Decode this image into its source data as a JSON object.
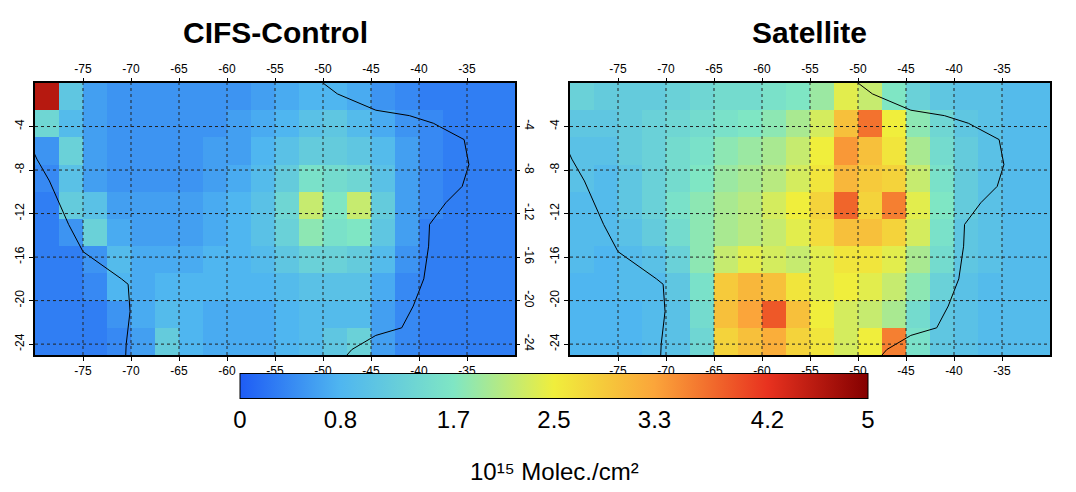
{
  "chart_data": {
    "type": "heatmap",
    "x": [
      -78.75,
      -76.25,
      -73.75,
      -71.25,
      -68.75,
      -66.25,
      -63.75,
      -61.25,
      -58.75,
      -56.25,
      -53.75,
      -51.25,
      -48.75,
      -46.25,
      -43.75,
      -41.25,
      -38.75,
      -36.25,
      -33.75,
      -31.25
    ],
    "y": [
      -23.75,
      -21.25,
      -18.75,
      -16.25,
      -13.75,
      -11.25,
      -8.75,
      -6.25,
      -3.75,
      -1.25
    ],
    "xlim": [
      -80,
      -30
    ],
    "ylim": [
      -25,
      0
    ],
    "xticks": [
      -75,
      -70,
      -65,
      -60,
      -55,
      -50,
      -45,
      -40,
      -35
    ],
    "yticks": [
      -4,
      -8,
      -12,
      -16,
      -20,
      -24
    ],
    "grid": true,
    "panels": [
      {
        "title": "CIFS-Control",
        "z": [
          [
            0.3,
            0.3,
            0.3,
            0.4,
            0.6,
            1.2,
            0.8,
            0.7,
            0.7,
            0.7,
            0.8,
            0.9,
            1.1,
            1.3,
            0.6,
            0.4,
            0.3,
            0.3,
            0.3,
            0.3
          ],
          [
            0.3,
            0.3,
            0.3,
            0.5,
            0.7,
            0.9,
            0.8,
            0.7,
            0.7,
            0.7,
            0.8,
            0.9,
            0.9,
            0.9,
            0.6,
            0.4,
            0.3,
            0.3,
            0.3,
            0.3
          ],
          [
            0.3,
            0.3,
            0.4,
            0.8,
            0.7,
            0.8,
            0.8,
            0.8,
            0.8,
            0.8,
            0.9,
            1.0,
            1.0,
            1.0,
            0.7,
            0.4,
            0.3,
            0.3,
            0.3,
            0.3
          ],
          [
            0.3,
            0.3,
            0.5,
            0.9,
            0.7,
            0.7,
            0.7,
            0.8,
            0.8,
            0.9,
            1.1,
            1.3,
            1.3,
            1.2,
            0.9,
            0.5,
            0.3,
            0.3,
            0.3,
            0.3
          ],
          [
            0.3,
            0.5,
            1.3,
            0.7,
            0.6,
            0.6,
            0.6,
            0.7,
            0.8,
            1.0,
            1.3,
            1.8,
            1.6,
            1.7,
            1.1,
            0.6,
            0.3,
            0.3,
            0.3,
            0.3
          ],
          [
            0.3,
            1.2,
            1.0,
            0.6,
            0.6,
            0.6,
            0.6,
            0.7,
            0.8,
            1.0,
            1.4,
            2.2,
            1.7,
            2.2,
            1.2,
            0.6,
            0.4,
            0.3,
            0.3,
            0.3
          ],
          [
            0.4,
            1.0,
            0.6,
            0.5,
            0.5,
            0.5,
            0.5,
            0.6,
            0.7,
            0.9,
            1.2,
            1.6,
            1.5,
            1.4,
            1.0,
            0.6,
            0.4,
            0.3,
            0.3,
            0.3
          ],
          [
            0.5,
            1.3,
            0.6,
            0.5,
            0.5,
            0.5,
            0.5,
            0.6,
            0.6,
            0.8,
            1.0,
            1.2,
            1.2,
            1.1,
            0.9,
            0.6,
            0.4,
            0.3,
            0.3,
            0.3
          ],
          [
            1.4,
            0.9,
            0.6,
            0.5,
            0.5,
            0.5,
            0.5,
            0.5,
            0.6,
            0.7,
            0.8,
            1.0,
            1.1,
            0.9,
            0.7,
            0.5,
            0.4,
            0.3,
            0.3,
            0.3
          ],
          [
            4.6,
            1.1,
            0.6,
            0.5,
            0.5,
            0.5,
            0.5,
            0.5,
            0.5,
            0.6,
            0.7,
            0.8,
            0.8,
            0.7,
            0.5,
            0.4,
            0.3,
            0.3,
            0.3,
            0.3
          ]
        ]
      },
      {
        "title": "Satellite",
        "z": [
          [
            0.8,
            0.8,
            0.8,
            0.9,
            1.0,
            1.4,
            2.8,
            3.0,
            3.2,
            2.8,
            2.6,
            2.3,
            2.5,
            3.6,
            1.6,
            1.1,
            1.0,
            0.9,
            0.9,
            0.9
          ],
          [
            0.8,
            0.8,
            0.8,
            0.9,
            1.0,
            1.5,
            3.0,
            3.3,
            3.9,
            3.0,
            2.5,
            2.3,
            2.2,
            2.0,
            1.5,
            1.1,
            1.0,
            0.9,
            0.9,
            0.9
          ],
          [
            0.8,
            0.8,
            0.9,
            0.9,
            1.1,
            1.6,
            2.9,
            3.1,
            3.0,
            2.6,
            2.4,
            2.5,
            2.4,
            2.2,
            1.8,
            1.3,
            1.0,
            0.9,
            0.9,
            0.9
          ],
          [
            0.9,
            0.8,
            0.9,
            1.0,
            1.3,
            1.8,
            2.2,
            2.4,
            2.3,
            2.2,
            2.4,
            2.6,
            2.6,
            2.4,
            2.0,
            1.5,
            1.1,
            1.0,
            0.9,
            0.9
          ],
          [
            0.9,
            0.9,
            1.0,
            1.2,
            1.5,
            1.8,
            2.0,
            2.1,
            2.2,
            2.4,
            2.7,
            3.0,
            3.0,
            2.8,
            2.3,
            1.6,
            1.1,
            1.0,
            0.9,
            0.9
          ],
          [
            0.9,
            0.9,
            1.1,
            1.3,
            1.6,
            1.8,
            2.0,
            2.1,
            2.3,
            2.5,
            2.8,
            3.8,
            2.8,
            3.6,
            2.4,
            1.7,
            1.2,
            1.0,
            0.9,
            0.9
          ],
          [
            1.0,
            0.9,
            1.1,
            1.3,
            1.5,
            1.7,
            1.9,
            2.0,
            2.1,
            2.3,
            2.6,
            3.1,
            2.9,
            2.8,
            2.2,
            1.6,
            1.2,
            1.0,
            0.9,
            0.9
          ],
          [
            1.0,
            1.0,
            1.2,
            1.3,
            1.5,
            1.6,
            1.8,
            1.9,
            2.0,
            2.2,
            2.5,
            3.4,
            3.0,
            2.6,
            2.0,
            1.5,
            1.2,
            1.0,
            0.9,
            0.9
          ],
          [
            1.1,
            1.1,
            1.2,
            1.3,
            1.4,
            1.5,
            1.6,
            1.7,
            1.8,
            2.0,
            2.3,
            3.0,
            3.7,
            2.5,
            1.8,
            1.4,
            1.1,
            1.0,
            0.9,
            0.9
          ],
          [
            1.3,
            1.2,
            1.2,
            1.2,
            1.3,
            1.4,
            1.5,
            1.5,
            1.6,
            1.7,
            1.9,
            2.4,
            2.2,
            1.7,
            1.3,
            1.1,
            1.0,
            1.0,
            0.9,
            0.9
          ]
        ]
      }
    ],
    "colorbar": {
      "title": "10¹⁵ Molec./cm²",
      "range": [
        0,
        5
      ],
      "ticks": [
        0,
        0.8,
        1.7,
        2.5,
        3.3,
        4.2,
        5
      ]
    },
    "coastline": {
      "lon": [
        -80.1,
        -80.5,
        -80.3,
        -81.1,
        -79.8,
        -78.5,
        -76.5,
        -75,
        -71,
        -70.3,
        -70.1,
        -70.5,
        -70.6,
        null,
        -50,
        -50,
        -48.5,
        -44.5,
        -41,
        -38.5,
        -35.3,
        -34.8,
        -35.5,
        -37.2,
        -38.9,
        -39,
        -39.5,
        -40.6,
        -41.8,
        -44.5,
        -47,
        -48.5
      ],
      "lat": [
        0.8,
        -0.5,
        -2,
        -4.5,
        -7,
        -9,
        -13,
        -15.5,
        -18,
        -18.5,
        -21,
        -24,
        -26,
        null,
        1.5,
        0,
        -1,
        -2.5,
        -3,
        -3.7,
        -5.2,
        -7.5,
        -9.5,
        -11,
        -13,
        -15,
        -18,
        -20.5,
        -22.5,
        -23.2,
        -24.5,
        -26
      ]
    }
  }
}
